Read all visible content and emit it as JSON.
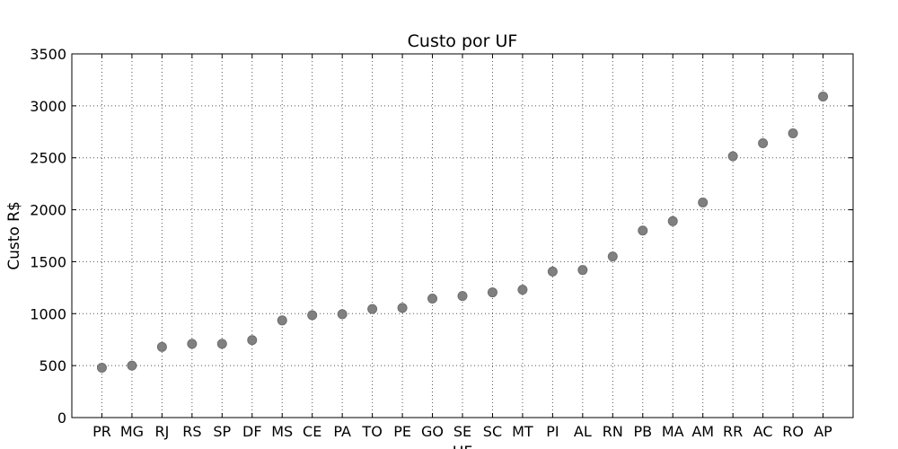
{
  "chart_data": {
    "type": "scatter",
    "title": "Custo por UF",
    "xlabel": "UF",
    "ylabel": "Custo R$",
    "categories": [
      "PR",
      "MG",
      "RJ",
      "RS",
      "SP",
      "DF",
      "MS",
      "CE",
      "PA",
      "TO",
      "PE",
      "GO",
      "SE",
      "SC",
      "MT",
      "PI",
      "AL",
      "RN",
      "PB",
      "MA",
      "AM",
      "RR",
      "AC",
      "RO",
      "AP"
    ],
    "values": [
      480,
      500,
      680,
      710,
      710,
      745,
      935,
      985,
      995,
      1045,
      1055,
      1145,
      1170,
      1205,
      1230,
      1405,
      1420,
      1550,
      1800,
      1890,
      2070,
      2515,
      2640,
      2735,
      3090
    ],
    "ylim": [
      0,
      3500
    ],
    "yticks": [
      0,
      500,
      1000,
      1500,
      2000,
      2500,
      3000,
      3500
    ],
    "grid": true,
    "marker_color": "#808080",
    "marker_edge_color": "#6e6e6e",
    "grid_color": "#555555"
  }
}
